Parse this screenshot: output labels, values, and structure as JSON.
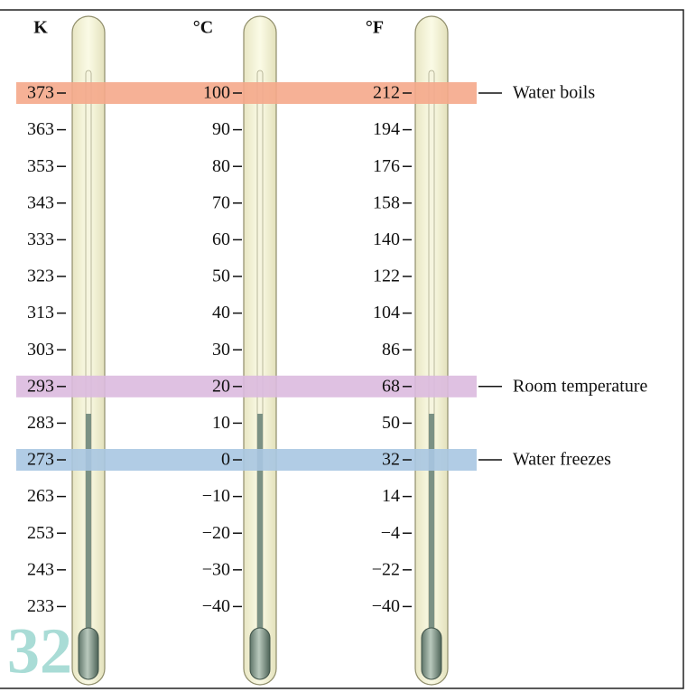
{
  "scales": [
    {
      "unit": "K",
      "labels": [
        "373",
        "363",
        "353",
        "343",
        "333",
        "323",
        "313",
        "303",
        "293",
        "283",
        "273",
        "263",
        "253",
        "243",
        "233"
      ]
    },
    {
      "unit": "°C",
      "labels": [
        "100",
        "90",
        "80",
        "70",
        "60",
        "50",
        "40",
        "30",
        "20",
        "10",
        "0",
        "−10",
        "−20",
        "−30",
        "−40"
      ]
    },
    {
      "unit": "°F",
      "labels": [
        "212",
        "194",
        "176",
        "158",
        "140",
        "122",
        "104",
        "86",
        "68",
        "50",
        "32",
        "14",
        "−4",
        "−22",
        "−40"
      ]
    }
  ],
  "markers": [
    "Water boils",
    "Room temperature",
    "Water freezes"
  ],
  "page_number": "32"
}
